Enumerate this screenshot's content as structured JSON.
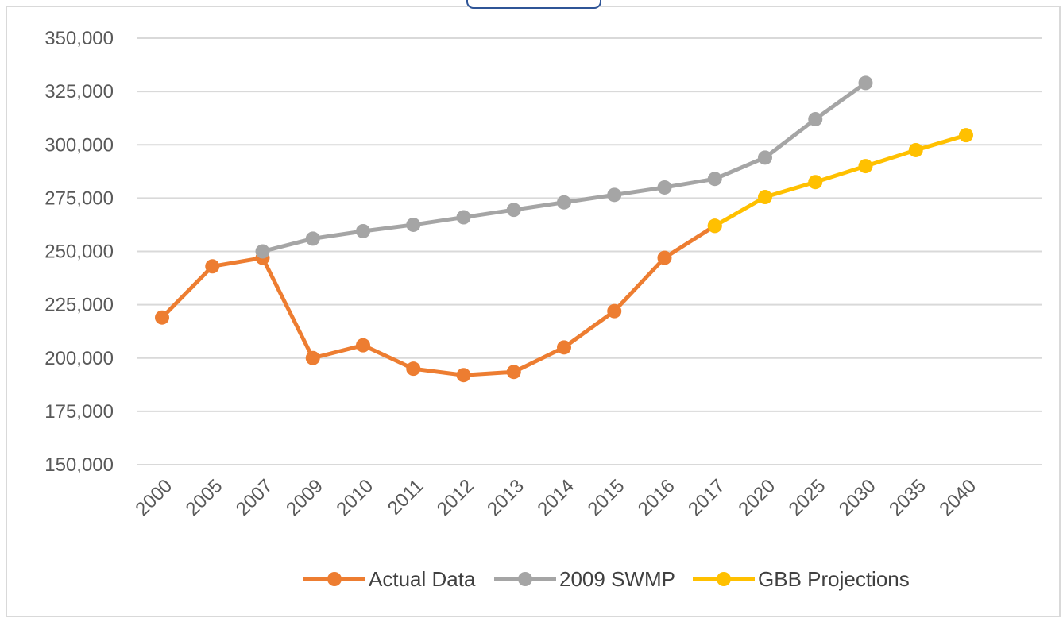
{
  "chart_data": {
    "type": "line",
    "categories": [
      "2000",
      "2005",
      "2007",
      "2009",
      "2010",
      "2011",
      "2012",
      "2013",
      "2014",
      "2015",
      "2016",
      "2017",
      "2020",
      "2025",
      "2030",
      "2035",
      "2040"
    ],
    "series": [
      {
        "name": "Actual Data",
        "color": "#ED7D31",
        "values": [
          219000,
          243000,
          247000,
          200000,
          206000,
          195000,
          192000,
          193500,
          205000,
          222000,
          247000,
          262000,
          null,
          null,
          null,
          null,
          null
        ]
      },
      {
        "name": "2009 SWMP",
        "color": "#A5A5A5",
        "values": [
          null,
          null,
          250000,
          256000,
          259500,
          262500,
          266000,
          269500,
          273000,
          276500,
          280000,
          284000,
          294000,
          312000,
          329000,
          null,
          null
        ]
      },
      {
        "name": "GBB Projections",
        "color": "#FFC000",
        "values": [
          null,
          null,
          null,
          null,
          null,
          null,
          null,
          null,
          null,
          null,
          null,
          262000,
          275500,
          282500,
          290000,
          297500,
          304500
        ]
      }
    ],
    "ylim": [
      150000,
      350000
    ],
    "yticks": [
      {
        "value": 150000,
        "label": "150,000"
      },
      {
        "value": 175000,
        "label": "175,000"
      },
      {
        "value": 200000,
        "label": "200,000"
      },
      {
        "value": 225000,
        "label": "225,000"
      },
      {
        "value": 250000,
        "label": "250,000"
      },
      {
        "value": 275000,
        "label": "275,000"
      },
      {
        "value": 300000,
        "label": "300,000"
      },
      {
        "value": 325000,
        "label": "325,000"
      },
      {
        "value": 350000,
        "label": "350,000"
      }
    ],
    "grid": true,
    "legend": "bottom"
  }
}
